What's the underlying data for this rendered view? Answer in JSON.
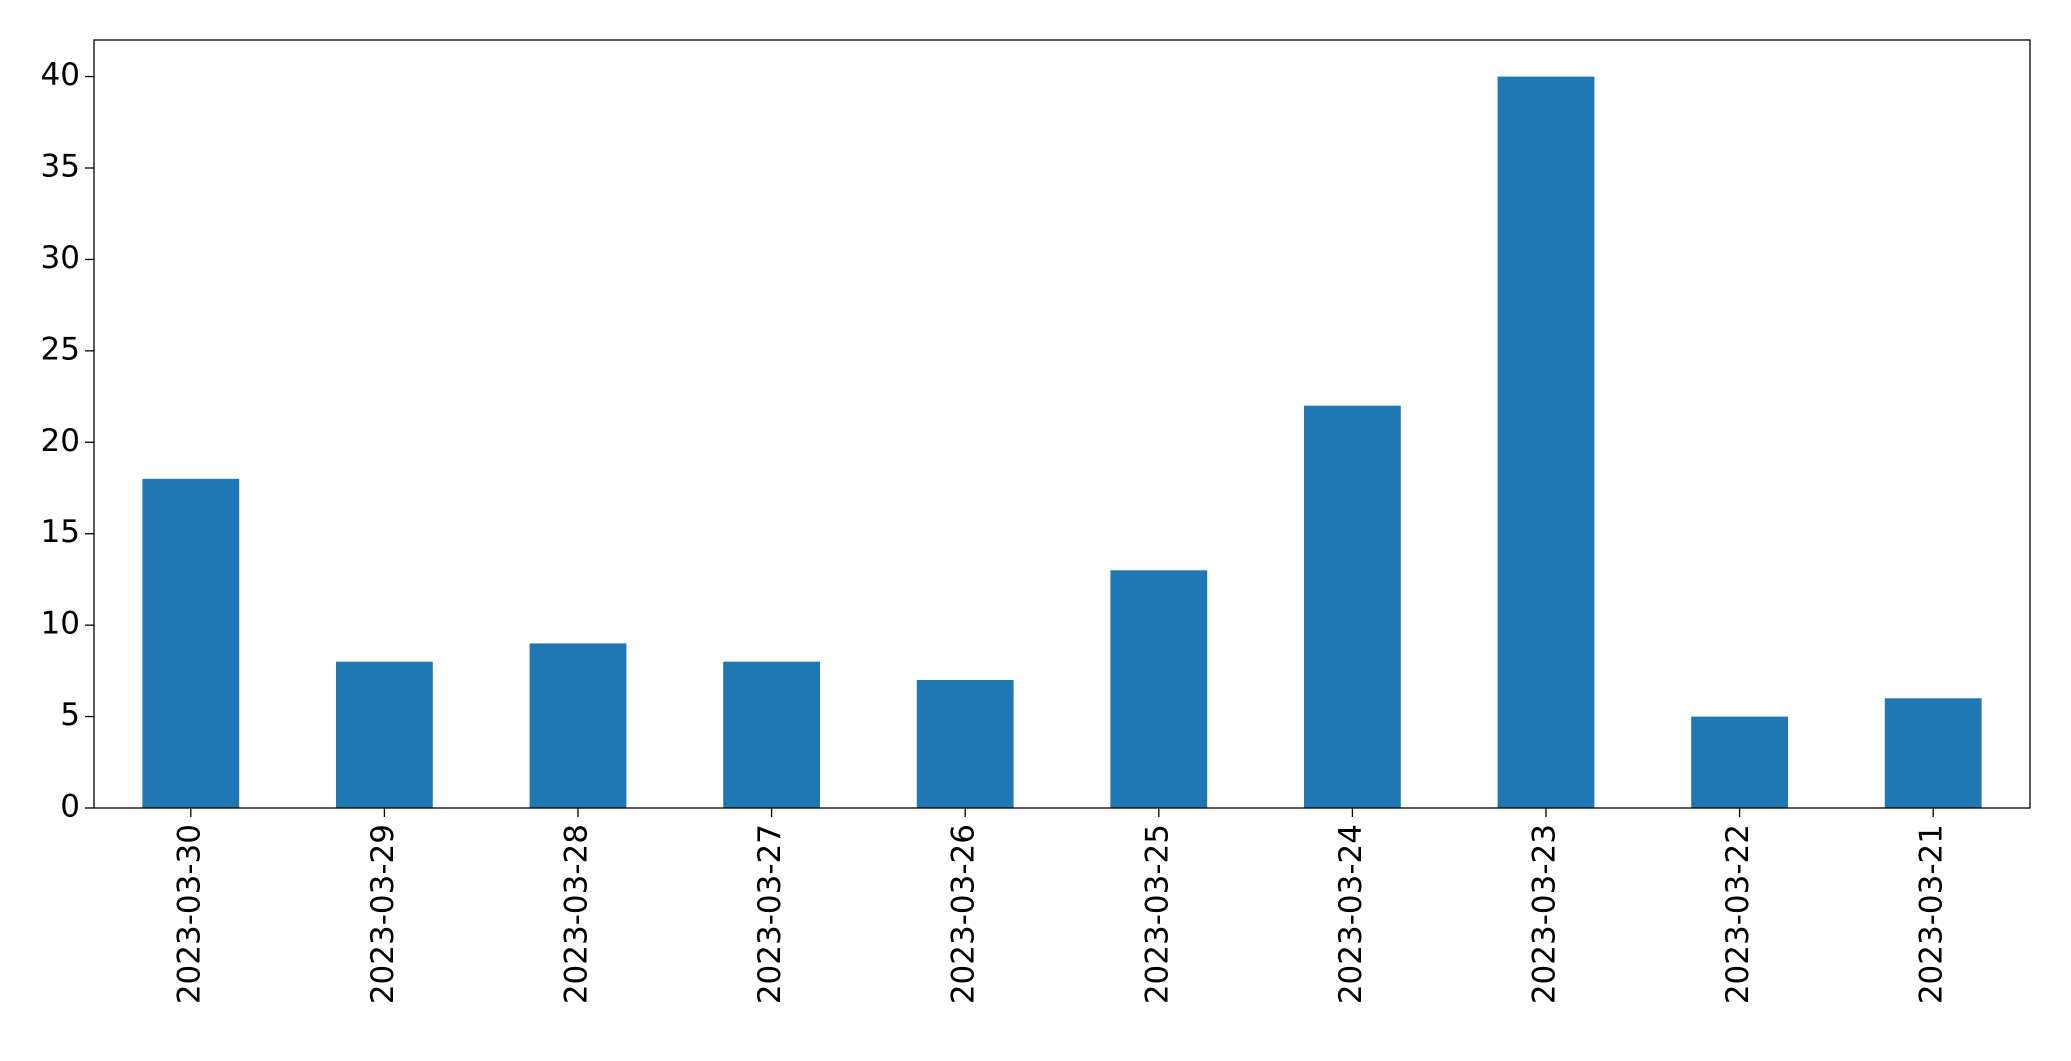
{
  "chart_data": {
    "type": "bar",
    "categories": [
      "2023-03-30",
      "2023-03-29",
      "2023-03-28",
      "2023-03-27",
      "2023-03-26",
      "2023-03-25",
      "2023-03-24",
      "2023-03-23",
      "2023-03-22",
      "2023-03-21"
    ],
    "values": [
      18,
      8,
      9,
      8,
      7,
      13,
      22,
      40,
      5,
      6
    ],
    "color": "#1f77b4",
    "ylim": [
      0,
      42
    ],
    "yticks": [
      0,
      5,
      10,
      15,
      20,
      25,
      30,
      35,
      40
    ],
    "grid": false
  }
}
